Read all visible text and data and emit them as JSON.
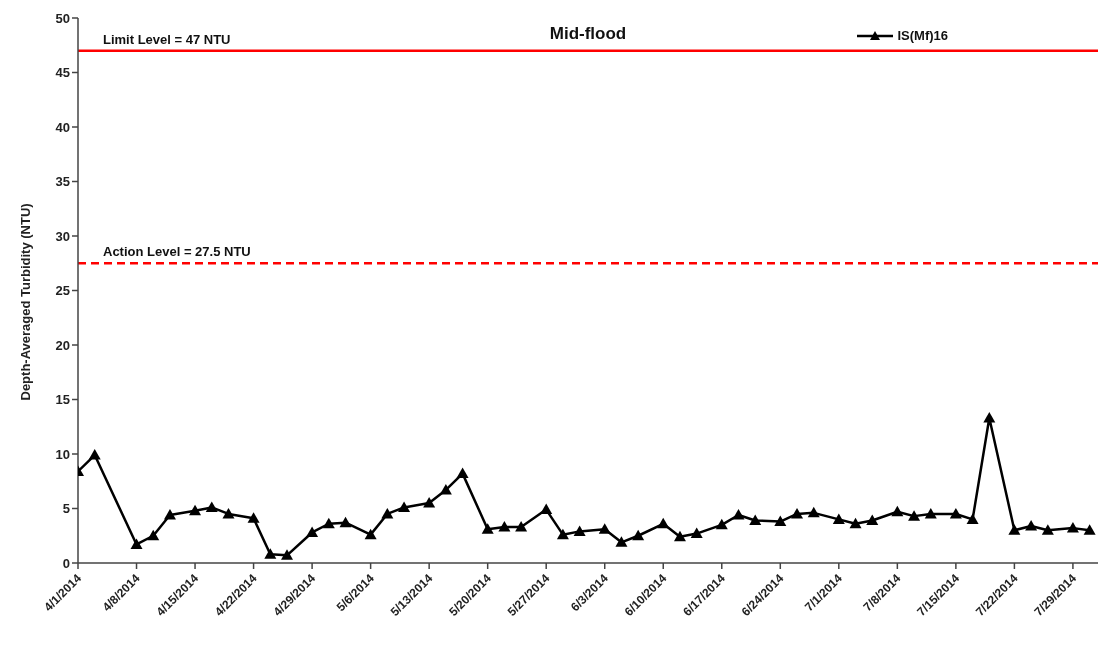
{
  "chart_data": {
    "type": "line",
    "title": "Mid-flood",
    "ylabel": "Depth-Averaged Turbidity (NTU)",
    "x": [
      "2014-04-01",
      "2014-04-03",
      "2014-04-08",
      "2014-04-10",
      "2014-04-12",
      "2014-04-15",
      "2014-04-17",
      "2014-04-19",
      "2014-04-22",
      "2014-04-24",
      "2014-04-26",
      "2014-04-29",
      "2014-05-01",
      "2014-05-03",
      "2014-05-06",
      "2014-05-08",
      "2014-05-10",
      "2014-05-13",
      "2014-05-15",
      "2014-05-17",
      "2014-05-20",
      "2014-05-22",
      "2014-05-24",
      "2014-05-27",
      "2014-05-29",
      "2014-05-31",
      "2014-06-03",
      "2014-06-05",
      "2014-06-07",
      "2014-06-10",
      "2014-06-12",
      "2014-06-14",
      "2014-06-17",
      "2014-06-19",
      "2014-06-21",
      "2014-06-24",
      "2014-06-26",
      "2014-06-28",
      "2014-07-01",
      "2014-07-03",
      "2014-07-05",
      "2014-07-08",
      "2014-07-10",
      "2014-07-12",
      "2014-07-15",
      "2014-07-17",
      "2014-07-19",
      "2014-07-22",
      "2014-07-24",
      "2014-07-26",
      "2014-07-29",
      "2014-07-31"
    ],
    "series": [
      {
        "name": "IS(Mf)16",
        "color": "#000000",
        "values": [
          8.4,
          9.9,
          1.7,
          2.5,
          4.4,
          4.8,
          5.1,
          4.5,
          4.1,
          0.8,
          0.7,
          2.8,
          3.6,
          3.7,
          2.6,
          4.5,
          5.1,
          5.5,
          6.7,
          8.2,
          3.1,
          3.3,
          3.3,
          4.9,
          2.6,
          2.9,
          3.1,
          1.9,
          2.5,
          3.6,
          2.4,
          2.7,
          3.5,
          4.4,
          3.9,
          3.8,
          4.5,
          4.6,
          4.0,
          3.6,
          3.9,
          4.7,
          4.3,
          4.5,
          4.5,
          4.0,
          13.3,
          3.0,
          3.4,
          3.0,
          3.2,
          3.0
        ]
      }
    ],
    "xlim": [
      "2014-04-01",
      "2014-08-01"
    ],
    "xticks": [
      {
        "value": "2014-04-01",
        "label": "4/1/2014"
      },
      {
        "value": "2014-04-08",
        "label": "4/8/2014"
      },
      {
        "value": "2014-04-15",
        "label": "4/15/2014"
      },
      {
        "value": "2014-04-22",
        "label": "4/22/2014"
      },
      {
        "value": "2014-04-29",
        "label": "4/29/2014"
      },
      {
        "value": "2014-05-06",
        "label": "5/6/2014"
      },
      {
        "value": "2014-05-13",
        "label": "5/13/2014"
      },
      {
        "value": "2014-05-20",
        "label": "5/20/2014"
      },
      {
        "value": "2014-05-27",
        "label": "5/27/2014"
      },
      {
        "value": "2014-06-03",
        "label": "6/3/2014"
      },
      {
        "value": "2014-06-10",
        "label": "6/10/2014"
      },
      {
        "value": "2014-06-17",
        "label": "6/17/2014"
      },
      {
        "value": "2014-06-24",
        "label": "6/24/2014"
      },
      {
        "value": "2014-07-01",
        "label": "7/1/2014"
      },
      {
        "value": "2014-07-08",
        "label": "7/8/2014"
      },
      {
        "value": "2014-07-15",
        "label": "7/15/2014"
      },
      {
        "value": "2014-07-22",
        "label": "7/22/2014"
      },
      {
        "value": "2014-07-29",
        "label": "7/29/2014"
      }
    ],
    "ylim": [
      0,
      50
    ],
    "yticks": [
      0,
      5,
      10,
      15,
      20,
      25,
      30,
      35,
      40,
      45,
      50
    ],
    "ref_lines": [
      {
        "axis": "y",
        "value": 47,
        "label": "Limit Level = 47 NTU",
        "color": "#ff0000",
        "line_style": "solid"
      },
      {
        "axis": "y",
        "value": 27.5,
        "label": "Action Level = 27.5 NTU",
        "color": "#ff0000",
        "line_style": "dashed"
      }
    ],
    "legend": "top right",
    "marker": "triangle",
    "line_style": "solid",
    "grid": false
  }
}
